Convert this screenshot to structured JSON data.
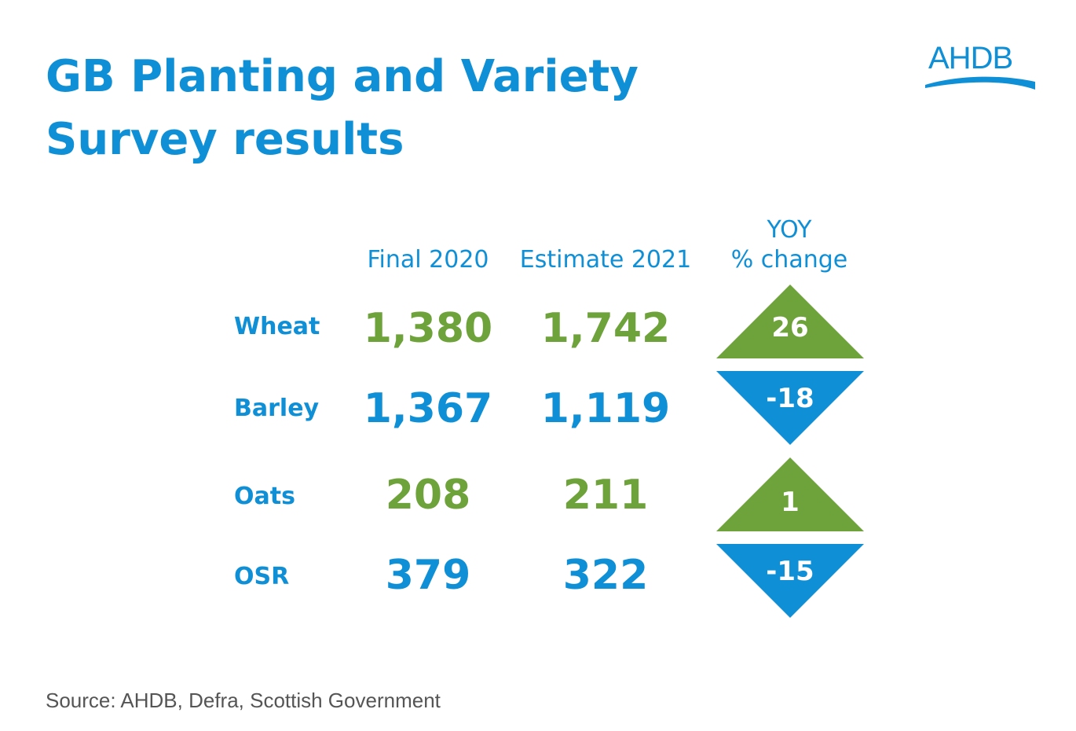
{
  "title_line1": "GB Planting and Variety",
  "title_line2": "Survey results",
  "logo_text": "AHDB",
  "headers": {
    "final": "Final 2020",
    "estimate": "Estimate 2021",
    "yoy_line1": "YOY",
    "yoy_line2": "% change"
  },
  "colors": {
    "brand_blue": "#0f8fd6",
    "green": "#6ea23a",
    "source_grey": "#555555"
  },
  "chart_data": {
    "type": "table",
    "title": "GB Planting and Variety Survey results",
    "columns": [
      "Final 2020",
      "Estimate 2021",
      "YOY % change"
    ],
    "rows": [
      {
        "label": "Wheat",
        "final_2020": "1,380",
        "estimate_2021": "1,742",
        "yoy": "26",
        "direction": "up",
        "color": "green"
      },
      {
        "label": "Barley",
        "final_2020": "1,367",
        "estimate_2021": "1,119",
        "yoy": "-18",
        "direction": "down",
        "color": "blue"
      },
      {
        "label": "Oats",
        "final_2020": "208",
        "estimate_2021": "211",
        "yoy": "1",
        "direction": "up",
        "color": "green"
      },
      {
        "label": "OSR",
        "final_2020": "379",
        "estimate_2021": "322",
        "yoy": "-15",
        "direction": "down",
        "color": "blue"
      }
    ]
  },
  "source": "Source: AHDB, Defra, Scottish Government"
}
